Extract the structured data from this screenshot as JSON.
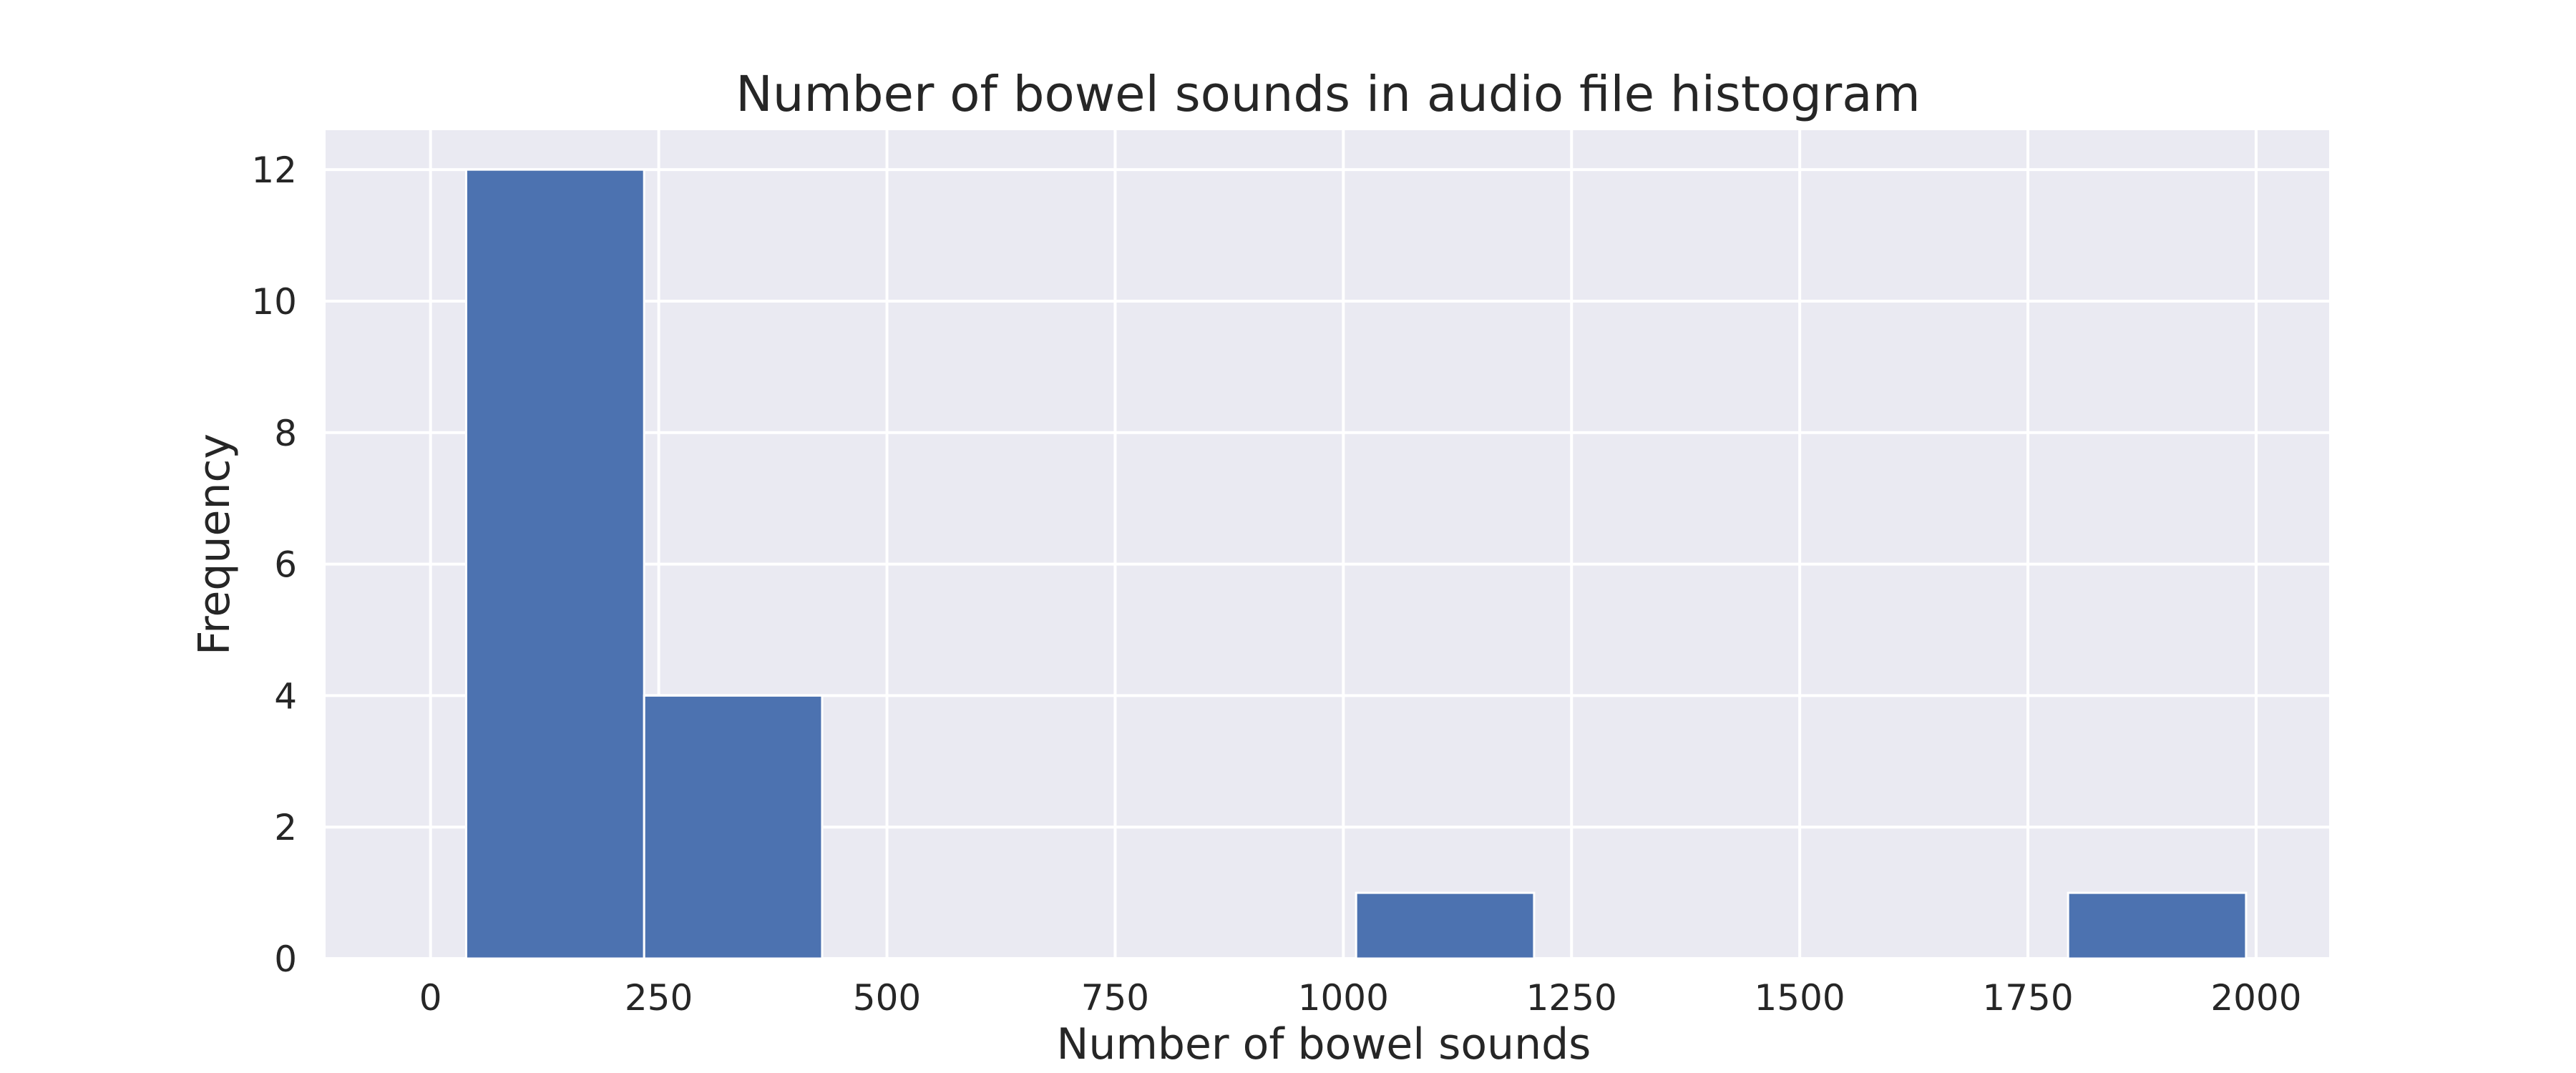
{
  "chart_data": {
    "type": "bar",
    "title": "Number of bowel sounds in audio file histogram",
    "xlabel": "Number of bowel sounds",
    "ylabel": "Frequency",
    "xlim": [
      -115,
      2080
    ],
    "ylim": [
      0,
      12.6
    ],
    "xticks": [
      0,
      250,
      500,
      750,
      1000,
      1250,
      1500,
      1750,
      2000
    ],
    "yticks": [
      0,
      2,
      4,
      6,
      8,
      10,
      12
    ],
    "grid": true,
    "bins": [
      {
        "start": 39,
        "end": 234,
        "count": 12
      },
      {
        "start": 234,
        "end": 429,
        "count": 4
      },
      {
        "start": 429,
        "end": 624,
        "count": 0
      },
      {
        "start": 624,
        "end": 819,
        "count": 0
      },
      {
        "start": 819,
        "end": 1014,
        "count": 0
      },
      {
        "start": 1014,
        "end": 1209,
        "count": 1
      },
      {
        "start": 1209,
        "end": 1404,
        "count": 0
      },
      {
        "start": 1404,
        "end": 1599,
        "count": 0
      },
      {
        "start": 1599,
        "end": 1794,
        "count": 0
      },
      {
        "start": 1794,
        "end": 1989,
        "count": 1
      }
    ],
    "colors": {
      "bar": "#4c72b0",
      "background": "#eaeaf2",
      "grid": "#ffffff",
      "text": "#262626"
    }
  }
}
